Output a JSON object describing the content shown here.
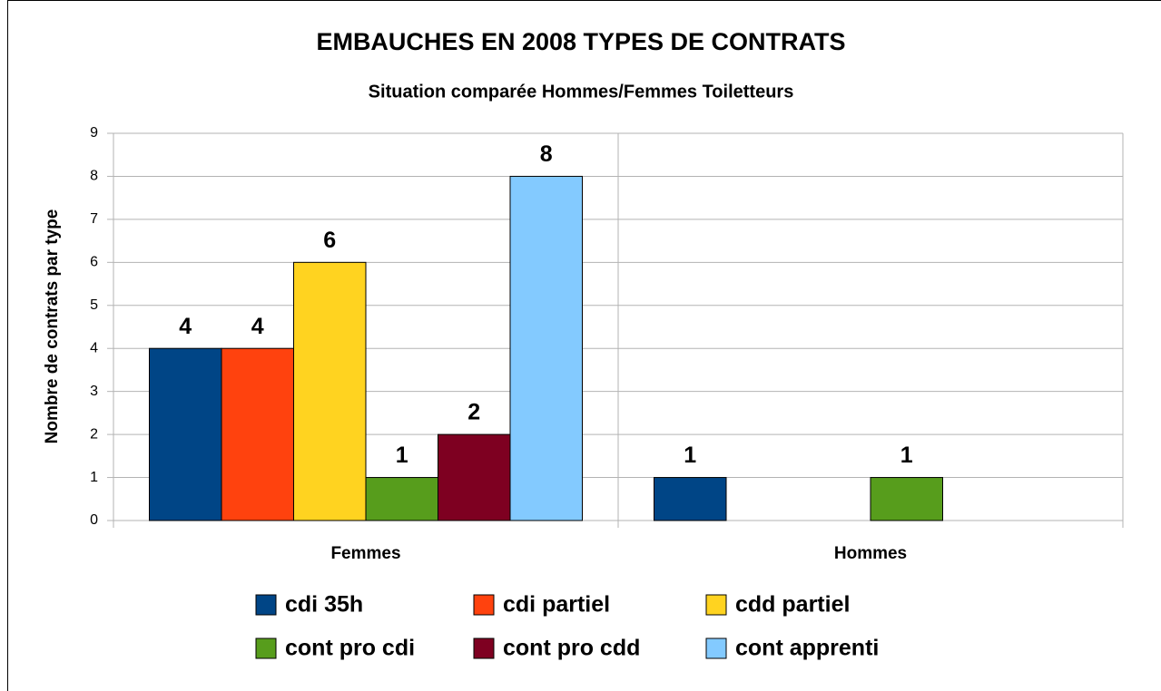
{
  "chart_data": {
    "type": "bar",
    "title": "EMBAUCHES EN 2008 TYPES DE CONTRATS",
    "subtitle": "Situation comparée Hommes/Femmes Toiletteurs",
    "y_label": "Nombre de contrats par type",
    "categories": [
      "Femmes",
      "Hommes"
    ],
    "series": [
      {
        "name": "cdi 35h",
        "color": "#004586",
        "values": [
          4,
          1
        ]
      },
      {
        "name": "cdi partiel",
        "color": "#ff420e",
        "values": [
          4,
          null
        ]
      },
      {
        "name": "cdd partiel",
        "color": "#ffd320",
        "values": [
          6,
          null
        ]
      },
      {
        "name": "cont pro cdi",
        "color": "#579d1c",
        "values": [
          1,
          1
        ]
      },
      {
        "name": "cont pro cdd",
        "color": "#7e0021",
        "values": [
          2,
          null
        ]
      },
      {
        "name": "cont apprenti",
        "color": "#83caff",
        "values": [
          8,
          null
        ]
      }
    ],
    "ylim": [
      0,
      9
    ],
    "yticks": [
      0,
      1,
      2,
      3,
      4,
      5,
      6,
      7,
      8,
      9
    ],
    "grid": true
  }
}
